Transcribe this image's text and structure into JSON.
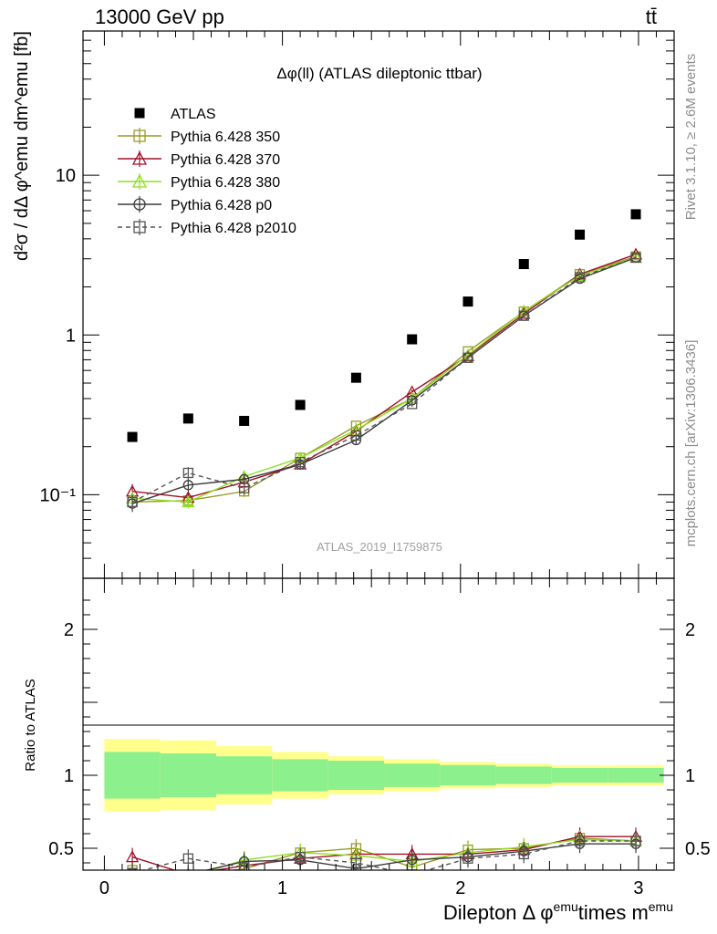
{
  "header": {
    "energy": "13000 GeV pp",
    "process": "tt̄",
    "analysis_id": "ATLAS_2019_I1759875",
    "rivet": "Rivet 3.1.10, ≥ 2.6M events",
    "source": "mcplots.cern.ch [arXiv:1306.3436]"
  },
  "chart_data": [
    {
      "type": "scatter",
      "panel": "main",
      "title": "Δφ(ll) (ATLAS dileptonic ttbar)",
      "ylabel": "d²σ / dΔ φ^emu dm^emu [fb]",
      "yscale": "log",
      "ylim": [
        0.03,
        80
      ],
      "xlim": [
        -0.12,
        3.2
      ],
      "yticks": [
        0.1,
        1,
        10
      ],
      "ytick_labels": [
        "10⁻¹",
        "1",
        "10"
      ],
      "grid": false,
      "legend_position": "top-left",
      "x": [
        0.157,
        0.471,
        0.785,
        1.1,
        1.414,
        1.728,
        2.042,
        2.356,
        2.67,
        2.985
      ],
      "series": [
        {
          "name": "ATLAS",
          "color": "#000000",
          "marker": "filled-square",
          "line": "none",
          "values": [
            0.23,
            0.3,
            0.29,
            0.365,
            0.54,
            0.94,
            1.62,
            2.78,
            4.25,
            5.7
          ]
        },
        {
          "name": "Pythia 6.428 350",
          "color": "#9a9a2a",
          "marker": "open-square",
          "line": "solid",
          "values": [
            0.09,
            0.092,
            0.105,
            0.17,
            0.27,
            0.4,
            0.79,
            1.4,
            2.4,
            3.1
          ],
          "errors": [
            0.008,
            0.008,
            0.008,
            0.01,
            0.012,
            0.015,
            0.02,
            0.03,
            0.04,
            0.05
          ]
        },
        {
          "name": "Pythia 6.428 370",
          "color": "#a0102a",
          "marker": "open-triangle",
          "line": "solid",
          "values": [
            0.105,
            0.096,
            0.12,
            0.155,
            0.25,
            0.44,
            0.74,
            1.36,
            2.4,
            3.2
          ],
          "errors": [
            0.012,
            0.008,
            0.01,
            0.01,
            0.012,
            0.015,
            0.02,
            0.03,
            0.04,
            0.05
          ]
        },
        {
          "name": "Pythia 6.428 380",
          "color": "#8ee020",
          "marker": "open-triangle",
          "line": "solid",
          "values": [
            0.095,
            0.09,
            0.13,
            0.17,
            0.255,
            0.4,
            0.75,
            1.41,
            2.35,
            3.05
          ],
          "errors": [
            0.01,
            0.008,
            0.01,
            0.01,
            0.012,
            0.015,
            0.02,
            0.03,
            0.04,
            0.05
          ]
        },
        {
          "name": "Pythia 6.428 p0",
          "color": "#3c3c3c",
          "marker": "open-circle",
          "line": "solid",
          "values": [
            0.088,
            0.115,
            0.125,
            0.155,
            0.22,
            0.39,
            0.72,
            1.32,
            2.25,
            3.05
          ],
          "errors": [
            0.01,
            0.01,
            0.01,
            0.01,
            0.012,
            0.015,
            0.02,
            0.03,
            0.04,
            0.05
          ]
        },
        {
          "name": "Pythia 6.428 p2010",
          "color": "#555555",
          "marker": "open-square",
          "line": "dashed",
          "values": [
            0.09,
            0.137,
            0.11,
            0.16,
            0.235,
            0.37,
            0.72,
            1.32,
            2.3,
            3.05
          ],
          "errors": [
            0.01,
            0.012,
            0.01,
            0.01,
            0.012,
            0.015,
            0.02,
            0.03,
            0.04,
            0.05
          ]
        }
      ]
    },
    {
      "type": "line",
      "panel": "ratio",
      "ylabel": "Ratio to ATLAS",
      "xlabel_parts": [
        "Dilepton Δ φ",
        "emu",
        "times m",
        "emu"
      ],
      "yscale": "linear",
      "ylim": [
        0.35,
        2.35
      ],
      "xlim": [
        -0.12,
        3.2
      ],
      "yticks": [
        0.5,
        1,
        2
      ],
      "ytick_labels": [
        "0.5",
        "1",
        "2"
      ],
      "xticks": [
        0,
        1,
        2,
        3
      ],
      "xtick_labels": [
        "0",
        "1",
        "2",
        "3"
      ],
      "band_edges": [
        0,
        0.314,
        0.628,
        0.942,
        1.257,
        1.571,
        1.885,
        2.199,
        2.513,
        2.827,
        3.142
      ],
      "band_inner": [
        0.16,
        0.15,
        0.13,
        0.11,
        0.1,
        0.08,
        0.07,
        0.06,
        0.05,
        0.05
      ],
      "band_outer": [
        0.25,
        0.24,
        0.2,
        0.16,
        0.13,
        0.11,
        0.09,
        0.08,
        0.07,
        0.07
      ],
      "series": [
        {
          "name": "Pythia 6.428 350",
          "values": [
            0.35,
            0.31,
            0.36,
            0.47,
            0.5,
            0.37,
            0.49,
            0.5,
            0.57,
            0.55
          ]
        },
        {
          "name": "Pythia 6.428 370",
          "values": [
            0.44,
            0.32,
            0.38,
            0.43,
            0.46,
            0.46,
            0.46,
            0.49,
            0.58,
            0.58
          ]
        },
        {
          "name": "Pythia 6.428 380",
          "values": [
            0.33,
            0.3,
            0.42,
            0.47,
            0.45,
            0.41,
            0.47,
            0.51,
            0.56,
            0.55
          ]
        },
        {
          "name": "Pythia 6.428 p0",
          "values": [
            0.33,
            0.32,
            0.41,
            0.42,
            0.36,
            0.42,
            0.44,
            0.48,
            0.53,
            0.53
          ]
        },
        {
          "name": "Pythia 6.428 p2010",
          "values": [
            0.33,
            0.43,
            0.37,
            0.44,
            0.4,
            0.32,
            0.43,
            0.46,
            0.55,
            0.55
          ]
        }
      ]
    }
  ]
}
